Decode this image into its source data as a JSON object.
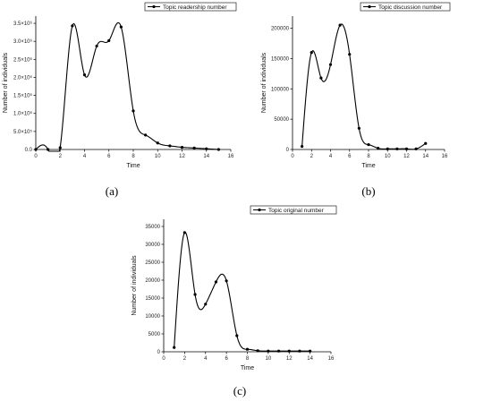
{
  "chart_data": [
    {
      "type": "line",
      "panel_label": "(a)",
      "xlabel": "Time",
      "ylabel": "Number of individuals",
      "xlim": [
        0,
        16
      ],
      "ylim": [
        0,
        3700000
      ],
      "x_ticks": [
        0,
        2,
        4,
        6,
        8,
        10,
        12,
        14,
        16
      ],
      "x_tick_labels": [
        "0",
        "2",
        "4",
        "6",
        "8",
        "10",
        "12",
        "14",
        "16"
      ],
      "y_ticks": [
        0,
        500000,
        1000000,
        1500000,
        2000000,
        2500000,
        3000000,
        3500000
      ],
      "y_tick_labels": [
        "0.0",
        "5.0×10⁵",
        "1.0×10⁶",
        "1.5×10⁶",
        "2.0×10⁶",
        "2.5×10⁶",
        "3.0×10⁶",
        "3.5×10⁶"
      ],
      "legend": {
        "position": "top-right"
      },
      "series": [
        {
          "name": "Topic readership number",
          "x": [
            0,
            1,
            2,
            3,
            4,
            5,
            6,
            7,
            8,
            9,
            10,
            11,
            12,
            13,
            14,
            15
          ],
          "y": [
            0,
            0,
            50000,
            3430000,
            2070000,
            2870000,
            3020000,
            3400000,
            1070000,
            400000,
            180000,
            100000,
            60000,
            40000,
            20000,
            0
          ]
        }
      ]
    },
    {
      "type": "line",
      "panel_label": "(b)",
      "xlabel": "Time",
      "ylabel": "Number of individuals",
      "xlim": [
        0,
        16
      ],
      "ylim": [
        0,
        220000
      ],
      "x_ticks": [
        0,
        2,
        4,
        6,
        8,
        10,
        12,
        14,
        16
      ],
      "x_tick_labels": [
        "0",
        "2",
        "4",
        "6",
        "8",
        "10",
        "12",
        "14",
        "16"
      ],
      "y_ticks": [
        0,
        50000,
        100000,
        150000,
        200000
      ],
      "y_tick_labels": [
        "0",
        "50000",
        "100000",
        "150000",
        "200000"
      ],
      "legend": {
        "position": "top-right"
      },
      "series": [
        {
          "name": "Topic discussion number",
          "x": [
            1,
            2,
            3,
            4,
            5,
            6,
            7,
            8,
            9,
            10,
            11,
            12,
            13,
            14
          ],
          "y": [
            5000,
            160000,
            118000,
            140000,
            205000,
            157000,
            35000,
            8000,
            2000,
            1000,
            1000,
            1000,
            1000,
            10000
          ]
        }
      ]
    },
    {
      "type": "line",
      "panel_label": "(c)",
      "xlabel": "Time",
      "ylabel": "Number of individuals",
      "xlim": [
        0,
        16
      ],
      "ylim": [
        0,
        37000
      ],
      "x_ticks": [
        0,
        2,
        4,
        6,
        8,
        10,
        12,
        14,
        16
      ],
      "x_tick_labels": [
        "0",
        "2",
        "4",
        "6",
        "8",
        "10",
        "12",
        "14",
        "16"
      ],
      "y_ticks": [
        0,
        5000,
        10000,
        15000,
        20000,
        25000,
        30000,
        35000
      ],
      "y_tick_labels": [
        "0",
        "5000",
        "10000",
        "15000",
        "20000",
        "25000",
        "30000",
        "35000"
      ],
      "legend": {
        "position": "top-right"
      },
      "series": [
        {
          "name": "Topic original number",
          "x": [
            1,
            2,
            3,
            4,
            5,
            6,
            7,
            8,
            9,
            10,
            11,
            12,
            13,
            14
          ],
          "y": [
            1200,
            33300,
            16000,
            13300,
            19500,
            19800,
            4500,
            700,
            300,
            200,
            200,
            200,
            200,
            200
          ]
        }
      ]
    }
  ]
}
